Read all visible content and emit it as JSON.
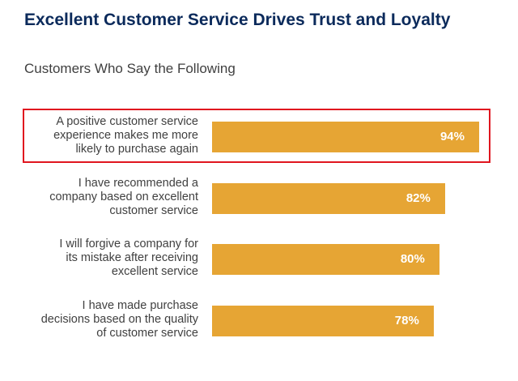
{
  "title": "Excellent Customer Service Drives Trust and Loyalty",
  "subtitle": "Customers Who Say the Following",
  "colors": {
    "bar": "#e6a534",
    "title": "#0b2a5b",
    "highlight": "#e0161f",
    "value_text": "#ffffff"
  },
  "highlighted_index": 0,
  "chart_data": {
    "type": "bar",
    "orientation": "horizontal",
    "categories": [
      "A positive customer service experience makes me more likely to purchase again",
      "I have recommended a company based on excellent customer service",
      "I will forgive a company for its mistake after receiving excellent service",
      "I have made purchase decisions based on the quality of customer service"
    ],
    "values": [
      94,
      82,
      80,
      78
    ],
    "value_labels": [
      "94%",
      "82%",
      "80%",
      "78%"
    ],
    "title": "Excellent Customer Service Drives Trust and Loyalty",
    "subtitle": "Customers Who Say the Following",
    "xlabel": "",
    "ylabel": "",
    "xlim": [
      0,
      100
    ],
    "grid": false,
    "legend": "none"
  }
}
